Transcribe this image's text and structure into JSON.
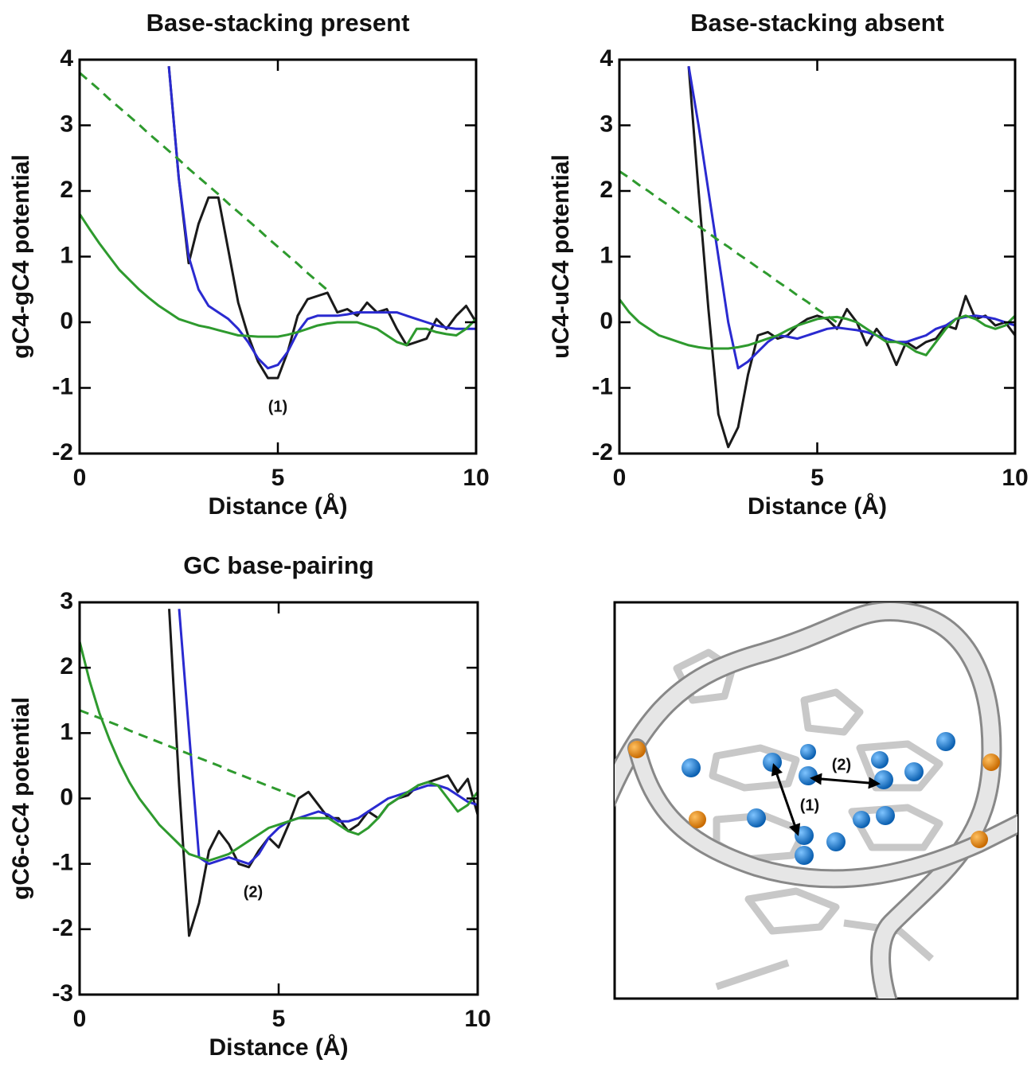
{
  "chart_data": [
    {
      "type": "line",
      "title": "Base-stacking present",
      "x_label": "Distance (Å)",
      "y_label": "gC4-gC4 potential",
      "x": [
        0,
        0.25,
        0.5,
        0.75,
        1,
        1.25,
        1.5,
        1.75,
        2,
        2.25,
        2.5,
        2.75,
        3,
        3.25,
        3.5,
        3.75,
        4,
        4.25,
        4.5,
        4.75,
        5,
        5.25,
        5.5,
        5.75,
        6,
        6.25,
        6.5,
        6.75,
        7,
        7.25,
        7.5,
        7.75,
        8,
        8.25,
        8.5,
        8.75,
        9,
        9.25,
        9.5,
        9.75,
        10
      ],
      "xlim": [
        0,
        10
      ],
      "xticks": [
        0,
        5,
        10
      ],
      "ylim": [
        -2,
        4
      ],
      "yticks": [
        -2,
        -1,
        0,
        1,
        2,
        3,
        4
      ],
      "annotations": [
        "(1)"
      ],
      "series": [
        {
          "color": "#1a1a1a",
          "linestyle": "solid",
          "values": [
            null,
            null,
            null,
            null,
            null,
            null,
            null,
            null,
            null,
            3.9,
            2.2,
            0.9,
            1.5,
            1.9,
            1.9,
            1.1,
            0.3,
            -0.2,
            -0.6,
            -0.85,
            -0.85,
            -0.45,
            0.1,
            0.35,
            0.4,
            0.45,
            0.15,
            0.2,
            0.1,
            0.3,
            0.15,
            0.2,
            -0.1,
            -0.35,
            -0.3,
            -0.25,
            0.05,
            -0.1,
            0.1,
            0.25,
            0.0
          ]
        },
        {
          "color": "#2a2ad0",
          "linestyle": "solid",
          "values": [
            null,
            null,
            null,
            null,
            null,
            null,
            null,
            null,
            null,
            3.9,
            2.2,
            1.0,
            0.5,
            0.25,
            0.15,
            0.05,
            -0.1,
            -0.3,
            -0.55,
            -0.7,
            -0.65,
            -0.45,
            -0.15,
            0.05,
            0.1,
            0.1,
            0.1,
            0.12,
            0.15,
            0.15,
            0.15,
            0.15,
            0.15,
            0.1,
            0.05,
            0,
            -0.05,
            -0.08,
            -0.1,
            -0.1,
            -0.1
          ]
        },
        {
          "color": "#2e9a2e",
          "linestyle": "solid",
          "values": [
            1.65,
            1.42,
            1.2,
            1.0,
            0.8,
            0.65,
            0.5,
            0.37,
            0.25,
            0.15,
            0.05,
            0,
            -0.05,
            -0.08,
            -0.12,
            -0.16,
            -0.2,
            -0.21,
            -0.22,
            -0.22,
            -0.22,
            -0.19,
            -0.15,
            -0.1,
            -0.05,
            -0.02,
            0,
            0,
            0,
            -0.05,
            -0.1,
            -0.2,
            -0.3,
            -0.35,
            -0.1,
            -0.1,
            -0.15,
            -0.18,
            -0.2,
            -0.1,
            0.05
          ]
        },
        {
          "color": "#2e9a2e",
          "linestyle": "dashed",
          "values": [
            3.8,
            3.67,
            3.54,
            3.4,
            3.27,
            3.14,
            3.01,
            2.87,
            2.74,
            2.61,
            2.48,
            2.34,
            2.21,
            2.08,
            1.95,
            1.81,
            1.68,
            1.55,
            1.42,
            1.28,
            1.15,
            1.02,
            0.89,
            0.75,
            0.62,
            0.49,
            null,
            null,
            null,
            null,
            null,
            null,
            null,
            null,
            null,
            null,
            null,
            null,
            null,
            null,
            null
          ]
        }
      ]
    },
    {
      "type": "line",
      "title": "Base-stacking absent",
      "x_label": "Distance (Å)",
      "y_label": "uC4-uC4 potential",
      "x": [
        0,
        0.25,
        0.5,
        0.75,
        1,
        1.25,
        1.5,
        1.75,
        2,
        2.25,
        2.5,
        2.75,
        3,
        3.25,
        3.5,
        3.75,
        4,
        4.25,
        4.5,
        4.75,
        5,
        5.25,
        5.5,
        5.75,
        6,
        6.25,
        6.5,
        6.75,
        7,
        7.25,
        7.5,
        7.75,
        8,
        8.25,
        8.5,
        8.75,
        9,
        9.25,
        9.5,
        9.75,
        10
      ],
      "xlim": [
        0,
        10
      ],
      "xticks": [
        0,
        5,
        10
      ],
      "ylim": [
        -2,
        4
      ],
      "yticks": [
        -2,
        -1,
        0,
        1,
        2,
        3,
        4
      ],
      "series": [
        {
          "color": "#1a1a1a",
          "linestyle": "solid",
          "values": [
            null,
            null,
            null,
            null,
            null,
            null,
            null,
            3.9,
            2.0,
            0.2,
            -1.4,
            -1.9,
            -1.6,
            -0.8,
            -0.2,
            -0.15,
            -0.25,
            -0.2,
            -0.05,
            0.05,
            0.1,
            0.05,
            -0.1,
            0.2,
            0,
            -0.35,
            -0.1,
            -0.3,
            -0.65,
            -0.3,
            -0.4,
            -0.3,
            -0.25,
            -0.05,
            -0.1,
            0.4,
            0.05,
            0.1,
            -0.05,
            0,
            -0.2
          ]
        },
        {
          "color": "#2a2ad0",
          "linestyle": "solid",
          "values": [
            null,
            null,
            null,
            null,
            null,
            null,
            null,
            3.9,
            3.0,
            2.0,
            1.0,
            0.0,
            -0.7,
            -0.6,
            -0.45,
            -0.3,
            -0.2,
            -0.22,
            -0.25,
            -0.2,
            -0.15,
            -0.1,
            -0.08,
            -0.1,
            -0.12,
            -0.15,
            -0.2,
            -0.25,
            -0.3,
            -0.3,
            -0.25,
            -0.2,
            -0.1,
            -0.05,
            0.05,
            0.08,
            0.1,
            0.08,
            0.05,
            0,
            -0.05
          ]
        },
        {
          "color": "#2e9a2e",
          "linestyle": "solid",
          "values": [
            0.35,
            0.15,
            0.0,
            -0.1,
            -0.2,
            -0.25,
            -0.3,
            -0.35,
            -0.38,
            -0.4,
            -0.4,
            -0.4,
            -0.38,
            -0.35,
            -0.3,
            -0.25,
            -0.2,
            -0.12,
            -0.05,
            0,
            0.05,
            0.07,
            0.08,
            0.05,
            0,
            -0.1,
            -0.2,
            -0.3,
            -0.3,
            -0.35,
            -0.45,
            -0.5,
            -0.3,
            -0.1,
            0.05,
            0.1,
            0.05,
            -0.05,
            -0.1,
            -0.05,
            0.1
          ]
        },
        {
          "color": "#2e9a2e",
          "linestyle": "dashed",
          "values": [
            2.3,
            2.2,
            2.09,
            1.99,
            1.88,
            1.78,
            1.67,
            1.57,
            1.46,
            1.36,
            1.25,
            1.15,
            1.04,
            0.94,
            0.83,
            0.73,
            0.62,
            0.52,
            0.41,
            0.31,
            0.2,
            0.1,
            0.0,
            null,
            null,
            null,
            null,
            null,
            null,
            null,
            null,
            null,
            null,
            null,
            null,
            null,
            null,
            null,
            null,
            null,
            null
          ]
        }
      ]
    },
    {
      "type": "line",
      "title": "GC base-pairing",
      "x_label": "Distance (Å)",
      "y_label": "gC6-cC4 potential",
      "x": [
        0,
        0.25,
        0.5,
        0.75,
        1,
        1.25,
        1.5,
        1.75,
        2,
        2.25,
        2.5,
        2.75,
        3,
        3.25,
        3.5,
        3.75,
        4,
        4.25,
        4.5,
        4.75,
        5,
        5.25,
        5.5,
        5.75,
        6,
        6.25,
        6.5,
        6.75,
        7,
        7.25,
        7.5,
        7.75,
        8,
        8.25,
        8.5,
        8.75,
        9,
        9.25,
        9.5,
        9.75,
        10
      ],
      "xlim": [
        0,
        10
      ],
      "xticks": [
        0,
        5,
        10
      ],
      "ylim": [
        -3,
        3
      ],
      "yticks": [
        -3,
        -2,
        -1,
        0,
        1,
        2,
        3
      ],
      "annotations": [
        "(2)"
      ],
      "series": [
        {
          "color": "#1a1a1a",
          "linestyle": "solid",
          "values": [
            null,
            null,
            null,
            null,
            null,
            null,
            null,
            null,
            null,
            2.9,
            0.2,
            -2.1,
            -1.6,
            -0.8,
            -0.5,
            -0.7,
            -1.0,
            -1.05,
            -0.8,
            -0.6,
            -0.75,
            -0.4,
            0,
            0.1,
            -0.1,
            -0.3,
            -0.3,
            -0.5,
            -0.4,
            -0.2,
            -0.3,
            -0.1,
            0,
            0.05,
            0.2,
            0.25,
            0.3,
            0.35,
            0.1,
            0.3,
            -0.25
          ]
        },
        {
          "color": "#2a2ad0",
          "linestyle": "solid",
          "values": [
            null,
            null,
            null,
            null,
            null,
            null,
            null,
            null,
            null,
            null,
            2.9,
            1.0,
            -0.9,
            -1.0,
            -0.95,
            -0.9,
            -0.95,
            -1.0,
            -0.85,
            -0.6,
            -0.45,
            -0.35,
            -0.3,
            -0.25,
            -0.2,
            -0.25,
            -0.35,
            -0.35,
            -0.3,
            -0.2,
            -0.1,
            0,
            0.05,
            0.1,
            0.15,
            0.2,
            0.2,
            0.15,
            0.05,
            -0.05,
            -0.1
          ]
        },
        {
          "color": "#2e9a2e",
          "linestyle": "solid",
          "values": [
            2.4,
            1.8,
            1.3,
            0.9,
            0.55,
            0.25,
            0,
            -0.2,
            -0.4,
            -0.55,
            -0.7,
            -0.85,
            -0.9,
            -0.95,
            -0.9,
            -0.85,
            -0.75,
            -0.65,
            -0.55,
            -0.45,
            -0.4,
            -0.35,
            -0.3,
            -0.3,
            -0.3,
            -0.3,
            -0.4,
            -0.5,
            -0.55,
            -0.45,
            -0.3,
            -0.1,
            0,
            0.1,
            0.2,
            0.25,
            0.2,
            0.0,
            -0.2,
            -0.1,
            0.1
          ]
        },
        {
          "color": "#2e9a2e",
          "linestyle": "dashed",
          "values": [
            1.35,
            1.29,
            1.23,
            1.17,
            1.11,
            1.04,
            0.98,
            0.92,
            0.86,
            0.8,
            0.74,
            0.68,
            0.62,
            0.56,
            0.5,
            0.43,
            0.37,
            0.31,
            0.25,
            0.19,
            0.13,
            0.07,
            0.01,
            null,
            null,
            null,
            null,
            null,
            null,
            null,
            null,
            null,
            null,
            null,
            null,
            null,
            null,
            null,
            null,
            null,
            null
          ]
        }
      ]
    }
  ],
  "figure_panel": {
    "labels": [
      "(1)",
      "(2)"
    ]
  }
}
